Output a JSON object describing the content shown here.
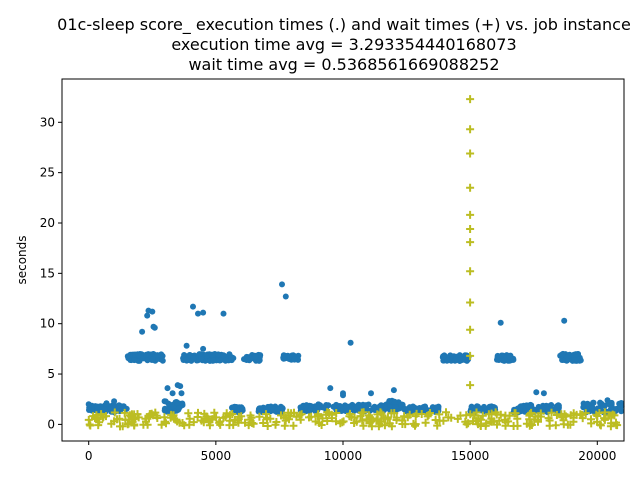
{
  "chart_data": {
    "type": "scatter",
    "title_lines": [
      "01c-sleep score_ execution times (.) and wait times (+) vs. job instance",
      "execution time avg = 3.293354440168073",
      "wait time avg = 0.5368561669088252"
    ],
    "xlabel": "",
    "ylabel": "seconds",
    "xlim": [
      -1050,
      21050
    ],
    "ylim": [
      -1.65,
      34.3
    ],
    "x_ticks": [
      0,
      5000,
      10000,
      15000,
      20000
    ],
    "x_tick_labels": [
      "0",
      "5000",
      "10000",
      "15000",
      "20000"
    ],
    "y_ticks": [
      0,
      5,
      10,
      15,
      20,
      25,
      30
    ],
    "y_tick_labels": [
      "0",
      "5",
      "10",
      "15",
      "20",
      "25",
      "30"
    ],
    "grid": false,
    "colors": {
      "execution": "#1f77b4",
      "wait": "#bcbd22"
    },
    "series": [
      {
        "marker": "dot",
        "color": "#1f77b4",
        "bands": [
          {
            "x0": 0,
            "x1": 1500,
            "y0": 1.2,
            "y1": 1.9,
            "n": 60
          },
          {
            "x0": 1500,
            "x1": 2950,
            "y0": 6.3,
            "y1": 7.0,
            "n": 70
          },
          {
            "x0": 2950,
            "x1": 3700,
            "y0": 1.2,
            "y1": 2.3,
            "n": 35
          },
          {
            "x0": 3700,
            "x1": 5700,
            "y0": 6.3,
            "y1": 7.0,
            "n": 90
          },
          {
            "x0": 5600,
            "x1": 6100,
            "y0": 1.2,
            "y1": 1.8,
            "n": 20
          },
          {
            "x0": 6100,
            "x1": 6750,
            "y0": 6.3,
            "y1": 6.9,
            "n": 30
          },
          {
            "x0": 6600,
            "x1": 7650,
            "y0": 1.2,
            "y1": 1.8,
            "n": 40
          },
          {
            "x0": 7650,
            "x1": 8300,
            "y0": 6.4,
            "y1": 6.9,
            "n": 30
          },
          {
            "x0": 8300,
            "x1": 11800,
            "y0": 1.3,
            "y1": 2.0,
            "n": 120
          },
          {
            "x0": 11800,
            "x1": 12400,
            "y0": 1.3,
            "y1": 2.4,
            "n": 30
          },
          {
            "x0": 12400,
            "x1": 13800,
            "y0": 1.2,
            "y1": 1.8,
            "n": 50
          },
          {
            "x0": 13900,
            "x1": 15000,
            "y0": 6.3,
            "y1": 6.9,
            "n": 50
          },
          {
            "x0": 15000,
            "x1": 16000,
            "y0": 1.2,
            "y1": 1.8,
            "n": 40
          },
          {
            "x0": 16000,
            "x1": 16700,
            "y0": 6.3,
            "y1": 6.9,
            "n": 35
          },
          {
            "x0": 16700,
            "x1": 18500,
            "y0": 1.2,
            "y1": 2.0,
            "n": 70
          },
          {
            "x0": 18500,
            "x1": 19400,
            "y0": 6.3,
            "y1": 7.0,
            "n": 40
          },
          {
            "x0": 19400,
            "x1": 21000,
            "y0": 1.2,
            "y1": 2.2,
            "n": 60
          }
        ],
        "points": [
          [
            0,
            2.0
          ],
          [
            700,
            2.1
          ],
          [
            1000,
            2.3
          ],
          [
            2100,
            9.2
          ],
          [
            2300,
            10.8
          ],
          [
            2350,
            11.3
          ],
          [
            2500,
            11.2
          ],
          [
            2550,
            9.7
          ],
          [
            2600,
            9.6
          ],
          [
            3100,
            3.6
          ],
          [
            3300,
            3.1
          ],
          [
            3500,
            3.9
          ],
          [
            3600,
            3.8
          ],
          [
            3650,
            3.1
          ],
          [
            3850,
            7.8
          ],
          [
            4100,
            11.7
          ],
          [
            4300,
            11.0
          ],
          [
            4500,
            11.1
          ],
          [
            4500,
            7.5
          ],
          [
            5300,
            11.0
          ],
          [
            7600,
            13.9
          ],
          [
            7750,
            12.7
          ],
          [
            9500,
            3.6
          ],
          [
            10000,
            3.1
          ],
          [
            10000,
            2.9
          ],
          [
            10300,
            8.1
          ],
          [
            11100,
            3.1
          ],
          [
            12000,
            3.4
          ],
          [
            16200,
            10.1
          ],
          [
            17600,
            3.2
          ],
          [
            17900,
            3.1
          ],
          [
            18700,
            10.3
          ],
          [
            20400,
            2.4
          ]
        ]
      },
      {
        "marker": "plus",
        "color": "#bcbd22",
        "bands": [
          {
            "x0": 0,
            "x1": 21000,
            "y0": -0.2,
            "y1": 1.2,
            "n": 320
          }
        ],
        "points": [
          [
            15000,
            32.3
          ],
          [
            15000,
            29.3
          ],
          [
            15000,
            26.9
          ],
          [
            15000,
            23.5
          ],
          [
            15000,
            20.8
          ],
          [
            15000,
            19.4
          ],
          [
            15000,
            18.1
          ],
          [
            15000,
            15.2
          ],
          [
            15000,
            12.1
          ],
          [
            15000,
            9.4
          ],
          [
            15000,
            6.8
          ],
          [
            15000,
            3.9
          ]
        ]
      }
    ]
  }
}
